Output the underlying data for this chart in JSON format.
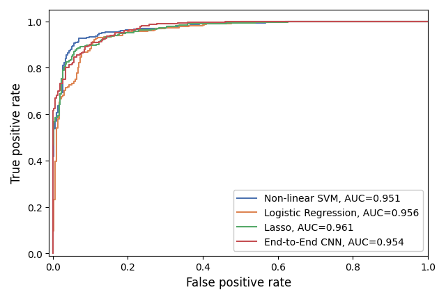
{
  "title": "",
  "xlabel": "False positive rate",
  "ylabel": "True positive rate",
  "xlim": [
    -0.01,
    1.0
  ],
  "ylim": [
    -0.01,
    1.05
  ],
  "models": [
    {
      "label": "Non-linear SVM, AUC=0.951",
      "color": "#4C72B0",
      "auc": 0.951,
      "seed": 1
    },
    {
      "label": "Logistic Regression, AUC=0.956",
      "color": "#DD8452",
      "auc": 0.956,
      "seed": 2
    },
    {
      "label": "Lasso, AUC=0.961",
      "color": "#55A868",
      "auc": 0.961,
      "seed": 3
    },
    {
      "label": "End-to-End CNN, AUC=0.954",
      "color": "#C44E52",
      "auc": 0.954,
      "seed": 4
    }
  ],
  "legend_loc": "lower right",
  "figsize": [
    6.4,
    4.31
  ],
  "dpi": 100,
  "linewidth": 1.5
}
